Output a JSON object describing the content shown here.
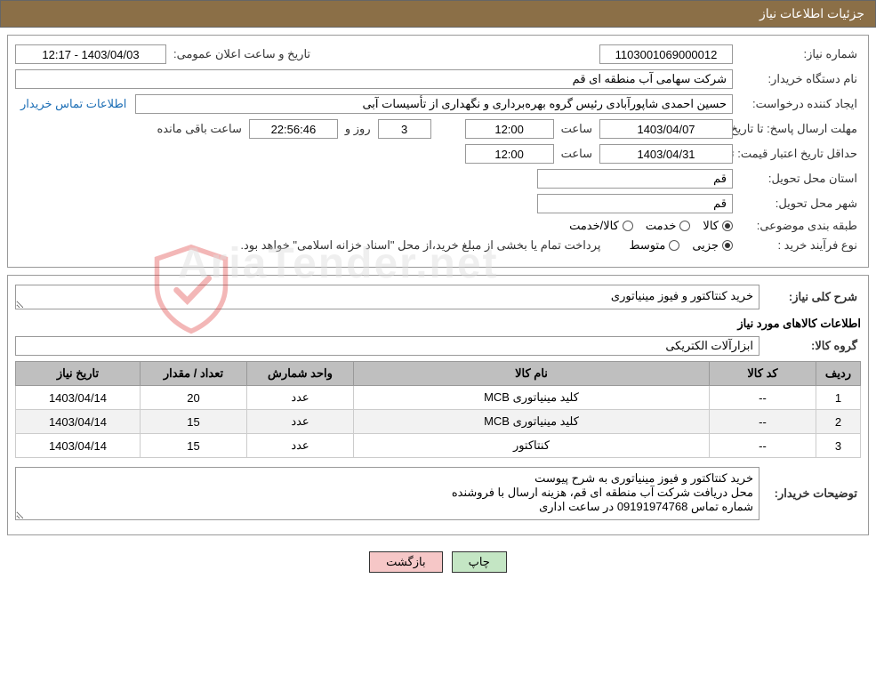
{
  "header": {
    "title": "جزئیات اطلاعات نیاز"
  },
  "details": {
    "need_number_label": "شماره نیاز:",
    "need_number": "1103001069000012",
    "announce_label": "تاریخ و ساعت اعلان عمومی:",
    "announce_value": "1403/04/03 - 12:17",
    "buyer_org_label": "نام دستگاه خریدار:",
    "buyer_org": "شرکت سهامی آب منطقه ای قم",
    "requester_label": "ایجاد کننده درخواست:",
    "requester": "حسین احمدی شاپورآبادی رئیس گروه بهره‌برداری و نگهداری از تأسیسات آبی",
    "contact_link": "اطلاعات تماس خریدار",
    "deadline_label": "مهلت ارسال پاسخ: تا تاریخ:",
    "deadline_date": "1403/04/07",
    "time_label": "ساعت",
    "deadline_time": "12:00",
    "days_remaining": "3",
    "days_and_label": "روز و",
    "time_remaining": "22:56:46",
    "remaining_label": "ساعت باقی مانده",
    "price_validity_label": "حداقل تاریخ اعتبار قیمت: تا تاریخ:",
    "price_validity_date": "1403/04/31",
    "price_validity_time": "12:00",
    "province_label": "استان محل تحویل:",
    "province": "قم",
    "city_label": "شهر محل تحویل:",
    "city": "قم",
    "subject_class_label": "طبقه بندی موضوعی:",
    "radio_goods": "کالا",
    "radio_service": "خدمت",
    "radio_both": "کالا/خدمت",
    "process_label": "نوع فرآیند خرید :",
    "radio_partial": "جزیی",
    "radio_medium": "متوسط",
    "process_note": "پرداخت تمام یا بخشی از مبلغ خرید،از محل \"اسناد خزانه اسلامی\" خواهد بود."
  },
  "need_desc": {
    "label": "شرح کلی نیاز:",
    "text": "خرید کنتاکتور و فیوز مینیاتوری",
    "goods_title": "اطلاعات کالاهای مورد نیاز",
    "group_label": "گروه کالا:",
    "group_value": "ابزارآلات الکتریکی"
  },
  "table": {
    "columns": [
      "ردیف",
      "کد کالا",
      "نام کالا",
      "واحد شمارش",
      "تعداد / مقدار",
      "تاریخ نیاز"
    ],
    "col_widths": [
      "50px",
      "120px",
      "auto",
      "120px",
      "120px",
      "140px"
    ],
    "rows": [
      [
        "1",
        "--",
        "کلید مینیاتوری MCB",
        "عدد",
        "20",
        "1403/04/14"
      ],
      [
        "2",
        "--",
        "کلید مینیاتوری MCB",
        "عدد",
        "15",
        "1403/04/14"
      ],
      [
        "3",
        "--",
        "کنتاکتور",
        "عدد",
        "15",
        "1403/04/14"
      ]
    ]
  },
  "buyer_notes": {
    "label": "توضیحات خریدار:",
    "text": "خرید کنتاکتور و فیوز مینیاتوری به شرح پیوست\nمحل دریافت شرکت آب منطقه ای قم، هزینه ارسال با فروشنده\nشماره تماس 09191974768 در ساعت اداری"
  },
  "buttons": {
    "print": "چاپ",
    "back": "بازگشت"
  },
  "colors": {
    "header_bg": "#8b6f47",
    "border": "#999999",
    "th_bg": "#bfbfbf",
    "row_alt": "#f2f2f2",
    "btn_print": "#c4e6c4",
    "btn_back": "#f6c7c7",
    "link": "#1a6db5"
  },
  "watermark": "AriaTender.net"
}
